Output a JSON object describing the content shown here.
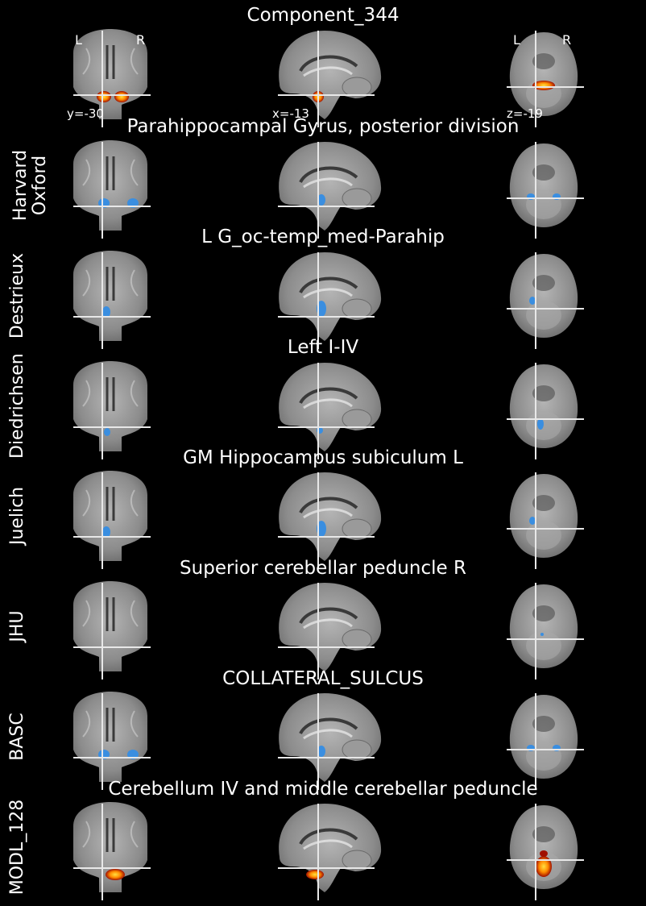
{
  "figure": {
    "title": "Component_344",
    "orientation_labels": {
      "left": "L",
      "right": "R"
    },
    "coords": {
      "coronal": "y=-30",
      "sagittal": "x=-13",
      "axial": "z=-19"
    }
  },
  "rows": [
    {
      "atlas": "",
      "region": "",
      "blob": "component"
    },
    {
      "atlas": "Harvard\nOxford",
      "region": "Parahippocampal Gyrus, posterior division",
      "blob": "bilat"
    },
    {
      "atlas": "Destrieux",
      "region": "L G_oc-temp_med-Parahip",
      "blob": "left"
    },
    {
      "atlas": "Diedrichsen",
      "region": "Left I-IV",
      "blob": "leftlow"
    },
    {
      "atlas": "Juelich",
      "region": "GM Hippocampus subiculum L",
      "blob": "left"
    },
    {
      "atlas": "JHU",
      "region": "Superior cerebellar peduncle R",
      "blob": "tiny"
    },
    {
      "atlas": "BASC",
      "region": "COLLATERAL_SULCUS",
      "blob": "bilat"
    },
    {
      "atlas": "MODL_128",
      "region": "Cerebellum IV and middle cerebellar peduncle",
      "blob": "hot"
    }
  ],
  "colors": {
    "background": "#000000",
    "overlay_blue": "#3a8ee0",
    "overlay_hot": "#ff3000",
    "overlay_hot_core": "#ffe040",
    "crosshair": "#e8e8e8"
  }
}
